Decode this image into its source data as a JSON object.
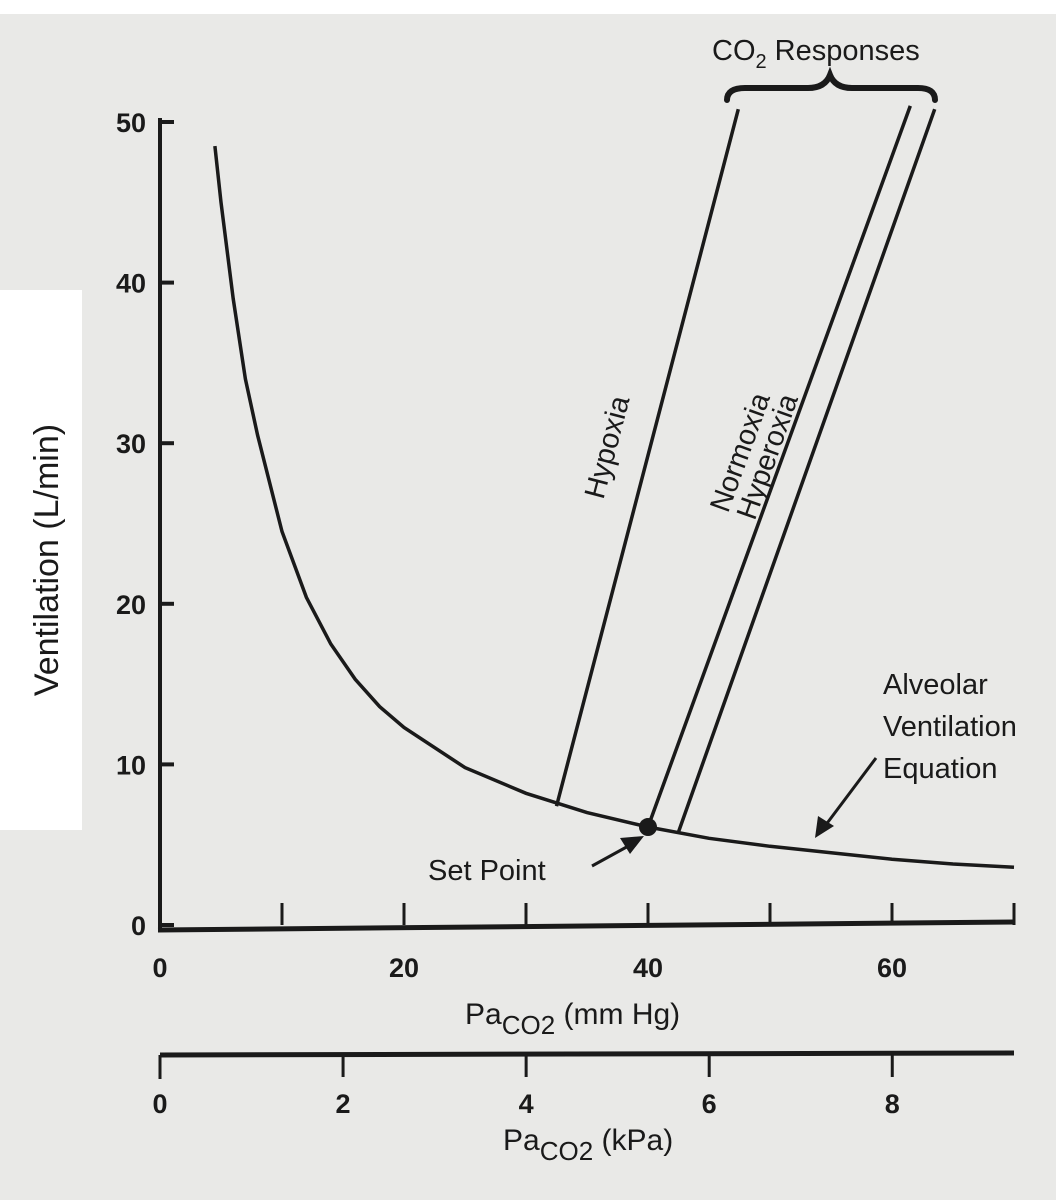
{
  "chart_data": {
    "type": "line",
    "xlabel": {
      "main": "Pa",
      "sub": "CO2",
      "unit": "(mm Hg)"
    },
    "x2label": {
      "main": "Pa",
      "sub": "CO2",
      "unit": "(kPa)"
    },
    "ylabel": "Ventilation (L/min)",
    "xlim": [
      0,
      70
    ],
    "ylim": [
      0,
      50
    ],
    "x_ticks": [
      0,
      10,
      20,
      30,
      40,
      50,
      60,
      70
    ],
    "x_tick_labels": [
      "0",
      "20",
      "40",
      "60"
    ],
    "x_tick_label_values": [
      0,
      20,
      40,
      60
    ],
    "x2lim": [
      0,
      9.33
    ],
    "x2_ticks": [
      0,
      2,
      4,
      6,
      8
    ],
    "x2_tick_labels": [
      "0",
      "2",
      "4",
      "6",
      "8"
    ],
    "y_ticks": [
      0,
      10,
      20,
      30,
      40,
      50
    ],
    "y_tick_labels": [
      "0",
      "10",
      "20",
      "30",
      "40",
      "50"
    ],
    "grid": false,
    "series": [
      {
        "name": "Alveolar Ventilation Equation",
        "kind": "curve",
        "x": [
          4.5,
          5,
          6,
          7,
          8,
          10,
          12,
          14,
          16,
          18,
          20,
          25,
          30,
          35,
          40,
          45,
          50,
          55,
          60,
          65,
          70
        ],
        "y": [
          48.5,
          45,
          39,
          34,
          30.5,
          24.5,
          20.4,
          17.5,
          15.3,
          13.6,
          12.3,
          9.8,
          8.2,
          7.0,
          6.1,
          5.4,
          4.9,
          4.5,
          4.1,
          3.8,
          3.6
        ]
      },
      {
        "name": "Hypoxia",
        "kind": "line",
        "x": [
          32.5,
          47.4
        ],
        "y": [
          7.4,
          50.8
        ]
      },
      {
        "name": "Normoxia",
        "kind": "line",
        "x": [
          40,
          61.5
        ],
        "y": [
          6.1,
          51
        ]
      },
      {
        "name": "Hyperoxia",
        "kind": "line",
        "x": [
          42.5,
          63.5
        ],
        "y": [
          5.8,
          50.8
        ]
      }
    ],
    "set_point": {
      "label": "Set Point",
      "x": 40,
      "y": 6.1
    },
    "annotations": {
      "co2_responses": {
        "main": "CO",
        "sub": "2",
        "rest": " Responses"
      },
      "alveolar": [
        "Alveolar",
        "Ventilation",
        "Equation"
      ]
    },
    "colors": {
      "ink": "#1a1a1a",
      "background": "#e9e9e7"
    }
  }
}
